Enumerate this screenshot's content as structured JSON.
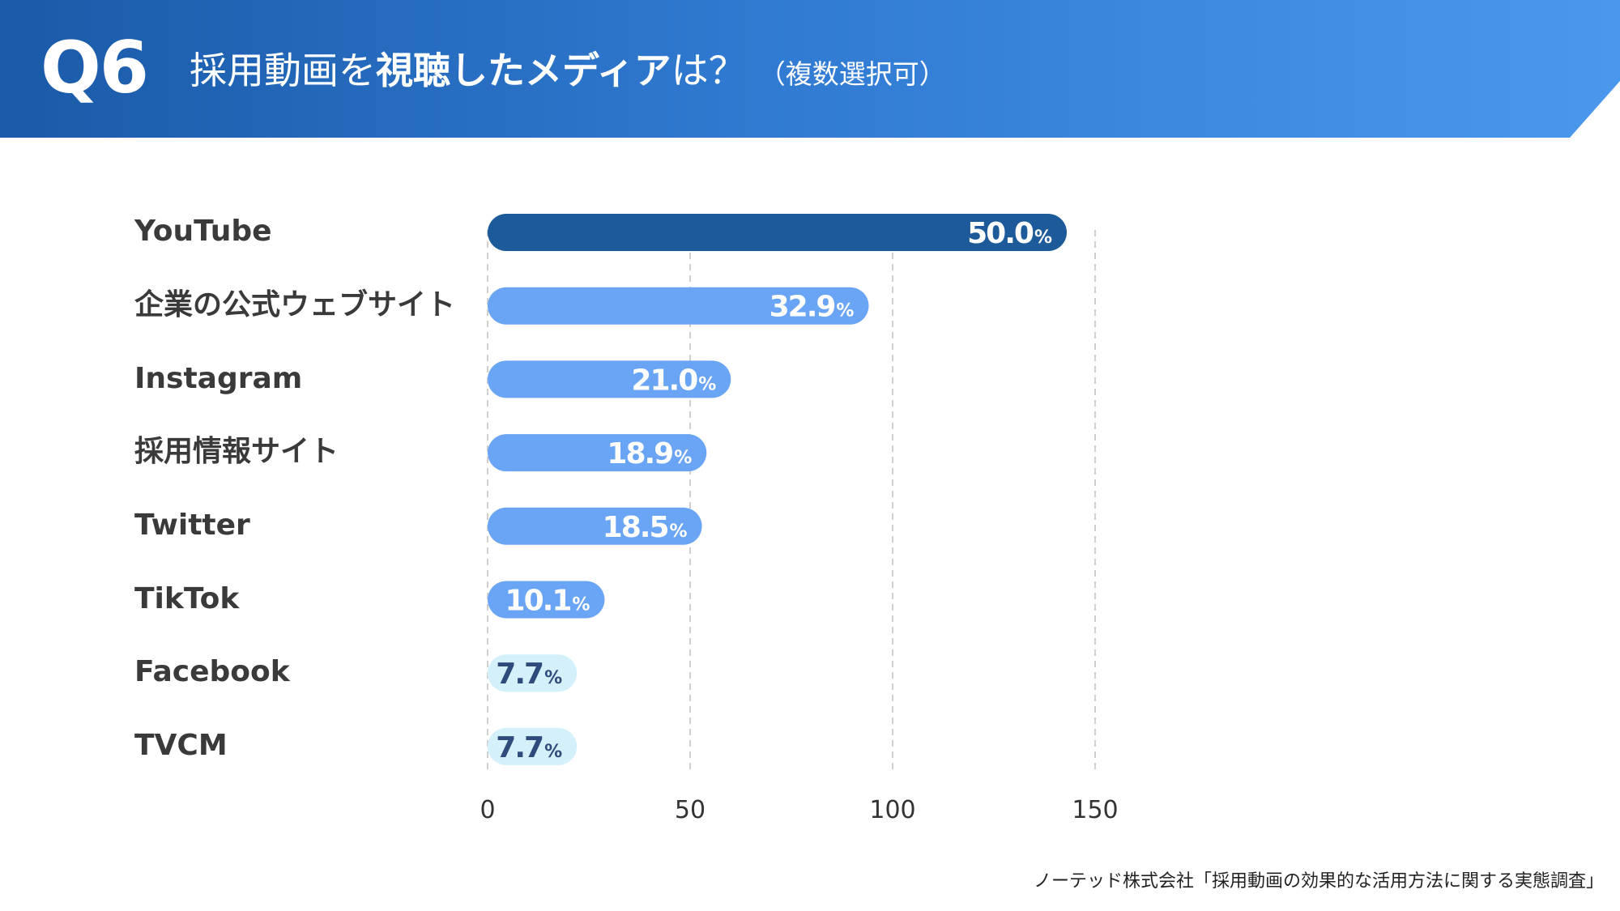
{
  "header": {
    "question_number": "Q6",
    "title_part1": "採用動画を",
    "title_part2": "視聴したメディア",
    "title_part3": "は？",
    "title_sub": "（複数選択可）"
  },
  "chart_data": {
    "type": "bar",
    "orientation": "horizontal",
    "title": "採用動画を視聴したメディアは？（複数選択可）",
    "categories": [
      "YouTube",
      "企業の公式ウェブサイト",
      "Instagram",
      "採用情報サイト",
      "Twitter",
      "TikTok",
      "Facebook",
      "TVCM"
    ],
    "values": [
      50.0,
      32.9,
      21.0,
      18.9,
      18.5,
      10.1,
      7.7,
      7.7
    ],
    "value_labels": [
      "50.0",
      "32.9",
      "21.0",
      "18.9",
      "18.5",
      "10.1",
      "7.7",
      "7.7"
    ],
    "unit": "%",
    "xticks": [
      "0",
      "50",
      "100",
      "150"
    ],
    "xtick_values": [
      0,
      50,
      100,
      150
    ],
    "xlim": [
      0,
      150
    ],
    "bar_scale": 2.86,
    "grid": true,
    "bar_colors": [
      "#1d5a9a",
      "#6aa5f5",
      "#6aa5f5",
      "#6aa5f5",
      "#6aa5f5",
      "#6aa5f5",
      "#d3f0fb",
      "#d3f0fb"
    ],
    "label_colors": [
      "#ffffff",
      "#ffffff",
      "#ffffff",
      "#ffffff",
      "#ffffff",
      "#ffffff",
      "#2e4b7c",
      "#2e4b7c"
    ]
  },
  "footer": {
    "source": "ノーテッド株式会社「採用動画の効果的な活用方法に関する実態調査」"
  }
}
